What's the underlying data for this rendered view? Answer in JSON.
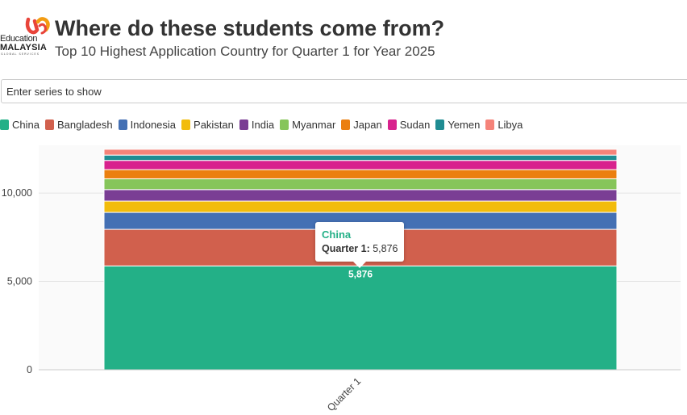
{
  "header": {
    "title": "Where do these students come from?",
    "subtitle": "Top 10 Highest Application Country for Quarter 1 for Year 2025",
    "logo": {
      "line1": "Education",
      "line2": "MALAYSIA",
      "line3": "GLOBAL SERVICES",
      "colors": [
        "#e8443a",
        "#f39c12"
      ]
    }
  },
  "search": {
    "placeholder": "Enter series to show"
  },
  "colors": {
    "China": "#23b087",
    "Bangladesh": "#d1604d",
    "Indonesia": "#4470b4",
    "Pakistan": "#f2bc0c",
    "India": "#7a3e94",
    "Myanmar": "#86c55a",
    "Japan": "#eb7f0f",
    "Sudan": "#d8228d",
    "Yemen": "#1f8c92",
    "Libya": "#f58379"
  },
  "chart_data": {
    "type": "bar",
    "stacked": true,
    "categories": [
      "Quarter 1"
    ],
    "series": [
      {
        "name": "China",
        "values": [
          5876
        ]
      },
      {
        "name": "Bangladesh",
        "values": [
          2070
        ]
      },
      {
        "name": "Indonesia",
        "values": [
          960
        ]
      },
      {
        "name": "Pakistan",
        "values": [
          640
        ]
      },
      {
        "name": "India",
        "values": [
          650
        ]
      },
      {
        "name": "Myanmar",
        "values": [
          610
        ]
      },
      {
        "name": "Japan",
        "values": [
          520
        ]
      },
      {
        "name": "Sudan",
        "values": [
          520
        ]
      },
      {
        "name": "Yemen",
        "values": [
          300
        ]
      },
      {
        "name": "Libya",
        "values": [
          330
        ]
      }
    ],
    "yticks": [
      0,
      5000,
      10000
    ],
    "ytick_labels": [
      "0",
      "5,000",
      "10,000"
    ],
    "ylim": [
      0,
      12700
    ],
    "grid": true,
    "legend": "top-left",
    "data_labels": [
      {
        "series": "China",
        "category": "Quarter 1",
        "text": "5,876"
      }
    ]
  },
  "tooltip": {
    "series": "China",
    "category_label": "Quarter 1:",
    "value": " 5,876"
  }
}
